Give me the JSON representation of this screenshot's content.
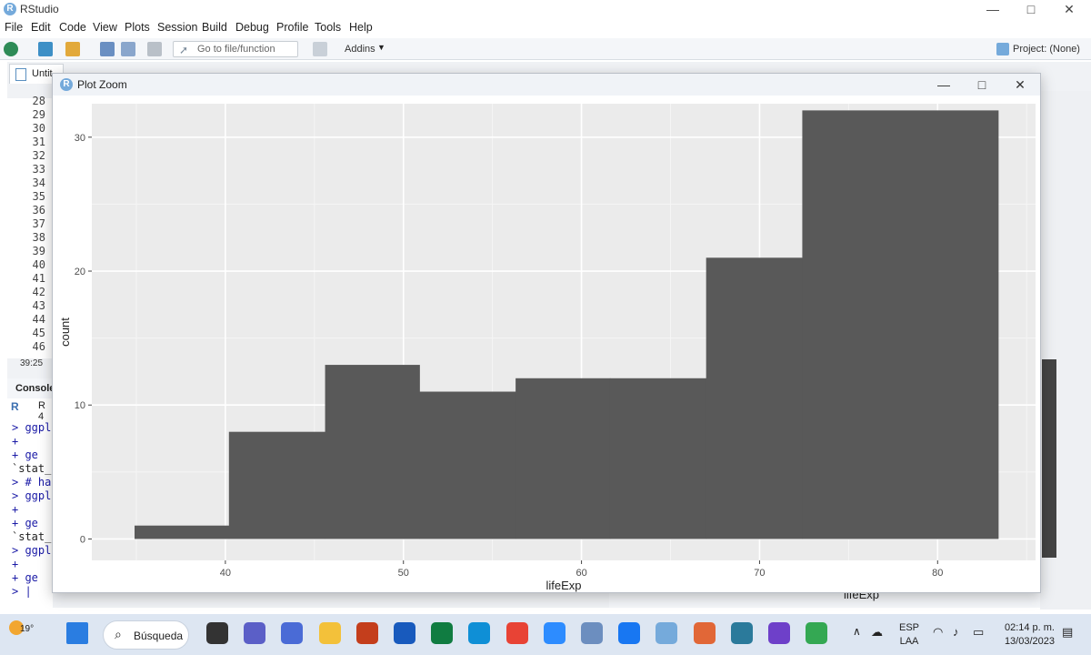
{
  "app": {
    "title": "RStudio"
  },
  "window_controls": {
    "minimize": "—",
    "maximize": "□",
    "close": "✕"
  },
  "menubar": [
    "File",
    "Edit",
    "Code",
    "View",
    "Plots",
    "Session",
    "Build",
    "Debug",
    "Profile",
    "Tools",
    "Help"
  ],
  "toolbar": {
    "goto_placeholder": "Go to file/function",
    "addins_label": "Addins",
    "project_label": "Project: (None)"
  },
  "editor": {
    "tab_label": "Untit",
    "line_numbers": [
      "28",
      "29",
      "30",
      "31",
      "32",
      "33",
      "34",
      "35",
      "36",
      "37",
      "38",
      "39",
      "40",
      "41",
      "42",
      "43",
      "44",
      "45",
      "46"
    ],
    "cursor_position": "39:25"
  },
  "console": {
    "header": "Console",
    "version": "R 4",
    "lines": [
      {
        "text": "> ggpl",
        "color": "#1a1aa6"
      },
      {
        "text": "+",
        "color": "#1a1aa6"
      },
      {
        "text": "+   ge",
        "color": "#1a1aa6"
      },
      {
        "text": "`stat_",
        "color": "#222222"
      },
      {
        "text": "> # ha",
        "color": "#1a1aa6"
      },
      {
        "text": "> ggpl",
        "color": "#1a1aa6"
      },
      {
        "text": "+",
        "color": "#1a1aa6"
      },
      {
        "text": "+   ge",
        "color": "#1a1aa6"
      },
      {
        "text": "`stat_",
        "color": "#222222"
      },
      {
        "text": "> ggpl",
        "color": "#1a1aa6"
      },
      {
        "text": "+",
        "color": "#1a1aa6"
      },
      {
        "text": "+   ge",
        "color": "#1a1aa6"
      },
      {
        "text": "> |",
        "color": "#1a1aa6"
      }
    ]
  },
  "background_plot": {
    "xlabel": "lifeExp"
  },
  "plot_zoom": {
    "title": "Plot Zoom"
  },
  "chart_data": {
    "type": "bar",
    "subtype": "histogram",
    "xlabel": "lifeExp",
    "ylabel": "count",
    "xlim": [
      32.5,
      85.5
    ],
    "ylim": [
      -1.6,
      32.5
    ],
    "x_ticks": [
      40,
      50,
      60,
      70,
      80
    ],
    "y_ticks": [
      0,
      10,
      20,
      30
    ],
    "bin_edges": [
      34.9,
      40.2,
      45.6,
      50.9,
      56.3,
      61.6,
      67.0,
      72.4,
      83.4
    ],
    "values": [
      1,
      8,
      13,
      11,
      12,
      12,
      21,
      32
    ],
    "bar_color": "#595959",
    "panel_background": "#ebebeb",
    "grid": true
  },
  "taskbar": {
    "weather": "19°",
    "search_label": "Búsqueda",
    "apps": [
      "task-view",
      "zoom-chat",
      "calendar",
      "file-explorer",
      "powerpoint",
      "word",
      "excel",
      "edge",
      "chrome",
      "zoom",
      "zoom-2",
      "facebook",
      "rstudio",
      "matlab",
      "search-tool",
      "github-desktop",
      "chrome-profile"
    ],
    "language": [
      "ESP",
      "LAA"
    ],
    "time": "02:14 p. m.",
    "date": "13/03/2023"
  },
  "colors": {
    "accent": "#75aadb",
    "bar": "#595959",
    "panel": "#ebebeb",
    "taskbar": "#dde6f2"
  }
}
